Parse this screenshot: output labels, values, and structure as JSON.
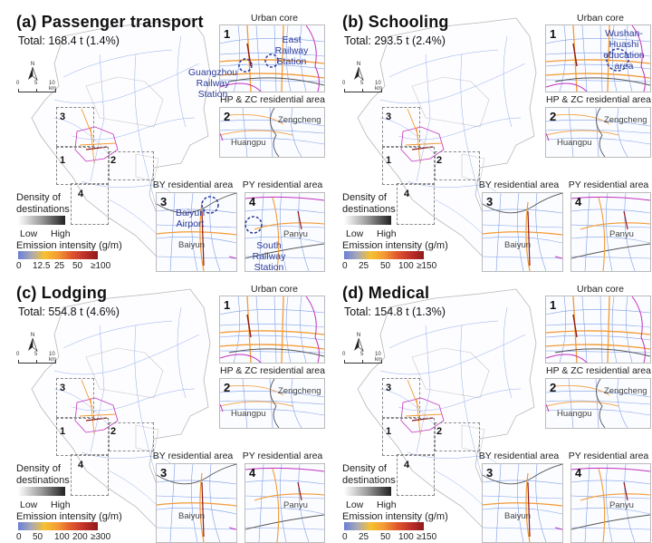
{
  "panels": [
    {
      "id": "a",
      "title": "(a) Passenger transport",
      "total": "Total: 168.4 t (1.4%)",
      "insets": {
        "urban_core": {
          "title": "Urban core",
          "num": "1",
          "annotations": [
            "East Railway Station",
            "Guangzhou Railway Station"
          ]
        },
        "hp_zc": {
          "title": "HP & ZC residential area",
          "num": "2",
          "places": [
            "Zengcheng",
            "Huangpu"
          ]
        },
        "by": {
          "title": "BY residential area",
          "num": "3",
          "places": [
            "Baiyun"
          ],
          "annotations": [
            "Baiyun Airport"
          ]
        },
        "py": {
          "title": "PY residential area",
          "num": "4",
          "places": [
            "Panyu"
          ],
          "annotations": [
            "South Railway Station"
          ]
        }
      },
      "emission_ticks": [
        "0",
        "12.5",
        "25",
        "50",
        "≥100"
      ]
    },
    {
      "id": "b",
      "title": "(b) Schooling",
      "total": "Total: 293.5 t (2.4%)",
      "insets": {
        "urban_core": {
          "title": "Urban core",
          "num": "1",
          "annotations": [
            "Wushan-Huashi education area"
          ]
        },
        "hp_zc": {
          "title": "HP & ZC residential area",
          "num": "2",
          "places": [
            "Zengcheng",
            "Huangpu"
          ]
        },
        "by": {
          "title": "BY residential area",
          "num": "3",
          "places": [
            "Baiyun"
          ],
          "annotations": []
        },
        "py": {
          "title": "PY residential area",
          "num": "4",
          "places": [
            "Panyu"
          ],
          "annotations": []
        }
      },
      "emission_ticks": [
        "0",
        "25",
        "50",
        "100",
        "≥150"
      ]
    },
    {
      "id": "c",
      "title": "(c) Lodging",
      "total": "Total: 554.8 t (4.6%)",
      "insets": {
        "urban_core": {
          "title": "Urban core",
          "num": "1",
          "annotations": []
        },
        "hp_zc": {
          "title": "HP & ZC residential area",
          "num": "2",
          "places": [
            "Zengcheng",
            "Huangpu"
          ]
        },
        "by": {
          "title": "BY residential area",
          "num": "3",
          "places": [
            "Baiyun"
          ],
          "annotations": []
        },
        "py": {
          "title": "PY residential area",
          "num": "4",
          "places": [
            "Panyu"
          ],
          "annotations": []
        }
      },
      "emission_ticks": [
        "0",
        "50",
        "100",
        "200",
        "≥300"
      ]
    },
    {
      "id": "d",
      "title": "(d) Medical",
      "total": "Total: 154.8 t (1.3%)",
      "insets": {
        "urban_core": {
          "title": "Urban core",
          "num": "1",
          "annotations": []
        },
        "hp_zc": {
          "title": "HP & ZC residential area",
          "num": "2",
          "places": [
            "Zengcheng",
            "Huangpu"
          ]
        },
        "by": {
          "title": "BY residential area",
          "num": "3",
          "places": [
            "Baiyun"
          ],
          "annotations": []
        },
        "py": {
          "title": "PY residential area",
          "num": "4",
          "places": [
            "Panyu"
          ],
          "annotations": []
        }
      },
      "emission_ticks": [
        "0",
        "25",
        "50",
        "100",
        "≥150"
      ]
    }
  ],
  "common": {
    "north_label": "N",
    "scale_labels": [
      "0",
      "5",
      "10 km"
    ],
    "density_title_1": "Density of",
    "density_title_2": "destinations",
    "density_low": "Low",
    "density_high": "High",
    "emission_title": "Emission intensity (g/m)",
    "box_numbers": [
      "1",
      "2",
      "3",
      "4"
    ]
  },
  "colors": {
    "road_low": "#6f8fe0",
    "road_mid": "#f39a34",
    "road_high": "#8d1a1a",
    "district_boundary": "#c22fbf",
    "annotation": "#2a3b9a"
  }
}
